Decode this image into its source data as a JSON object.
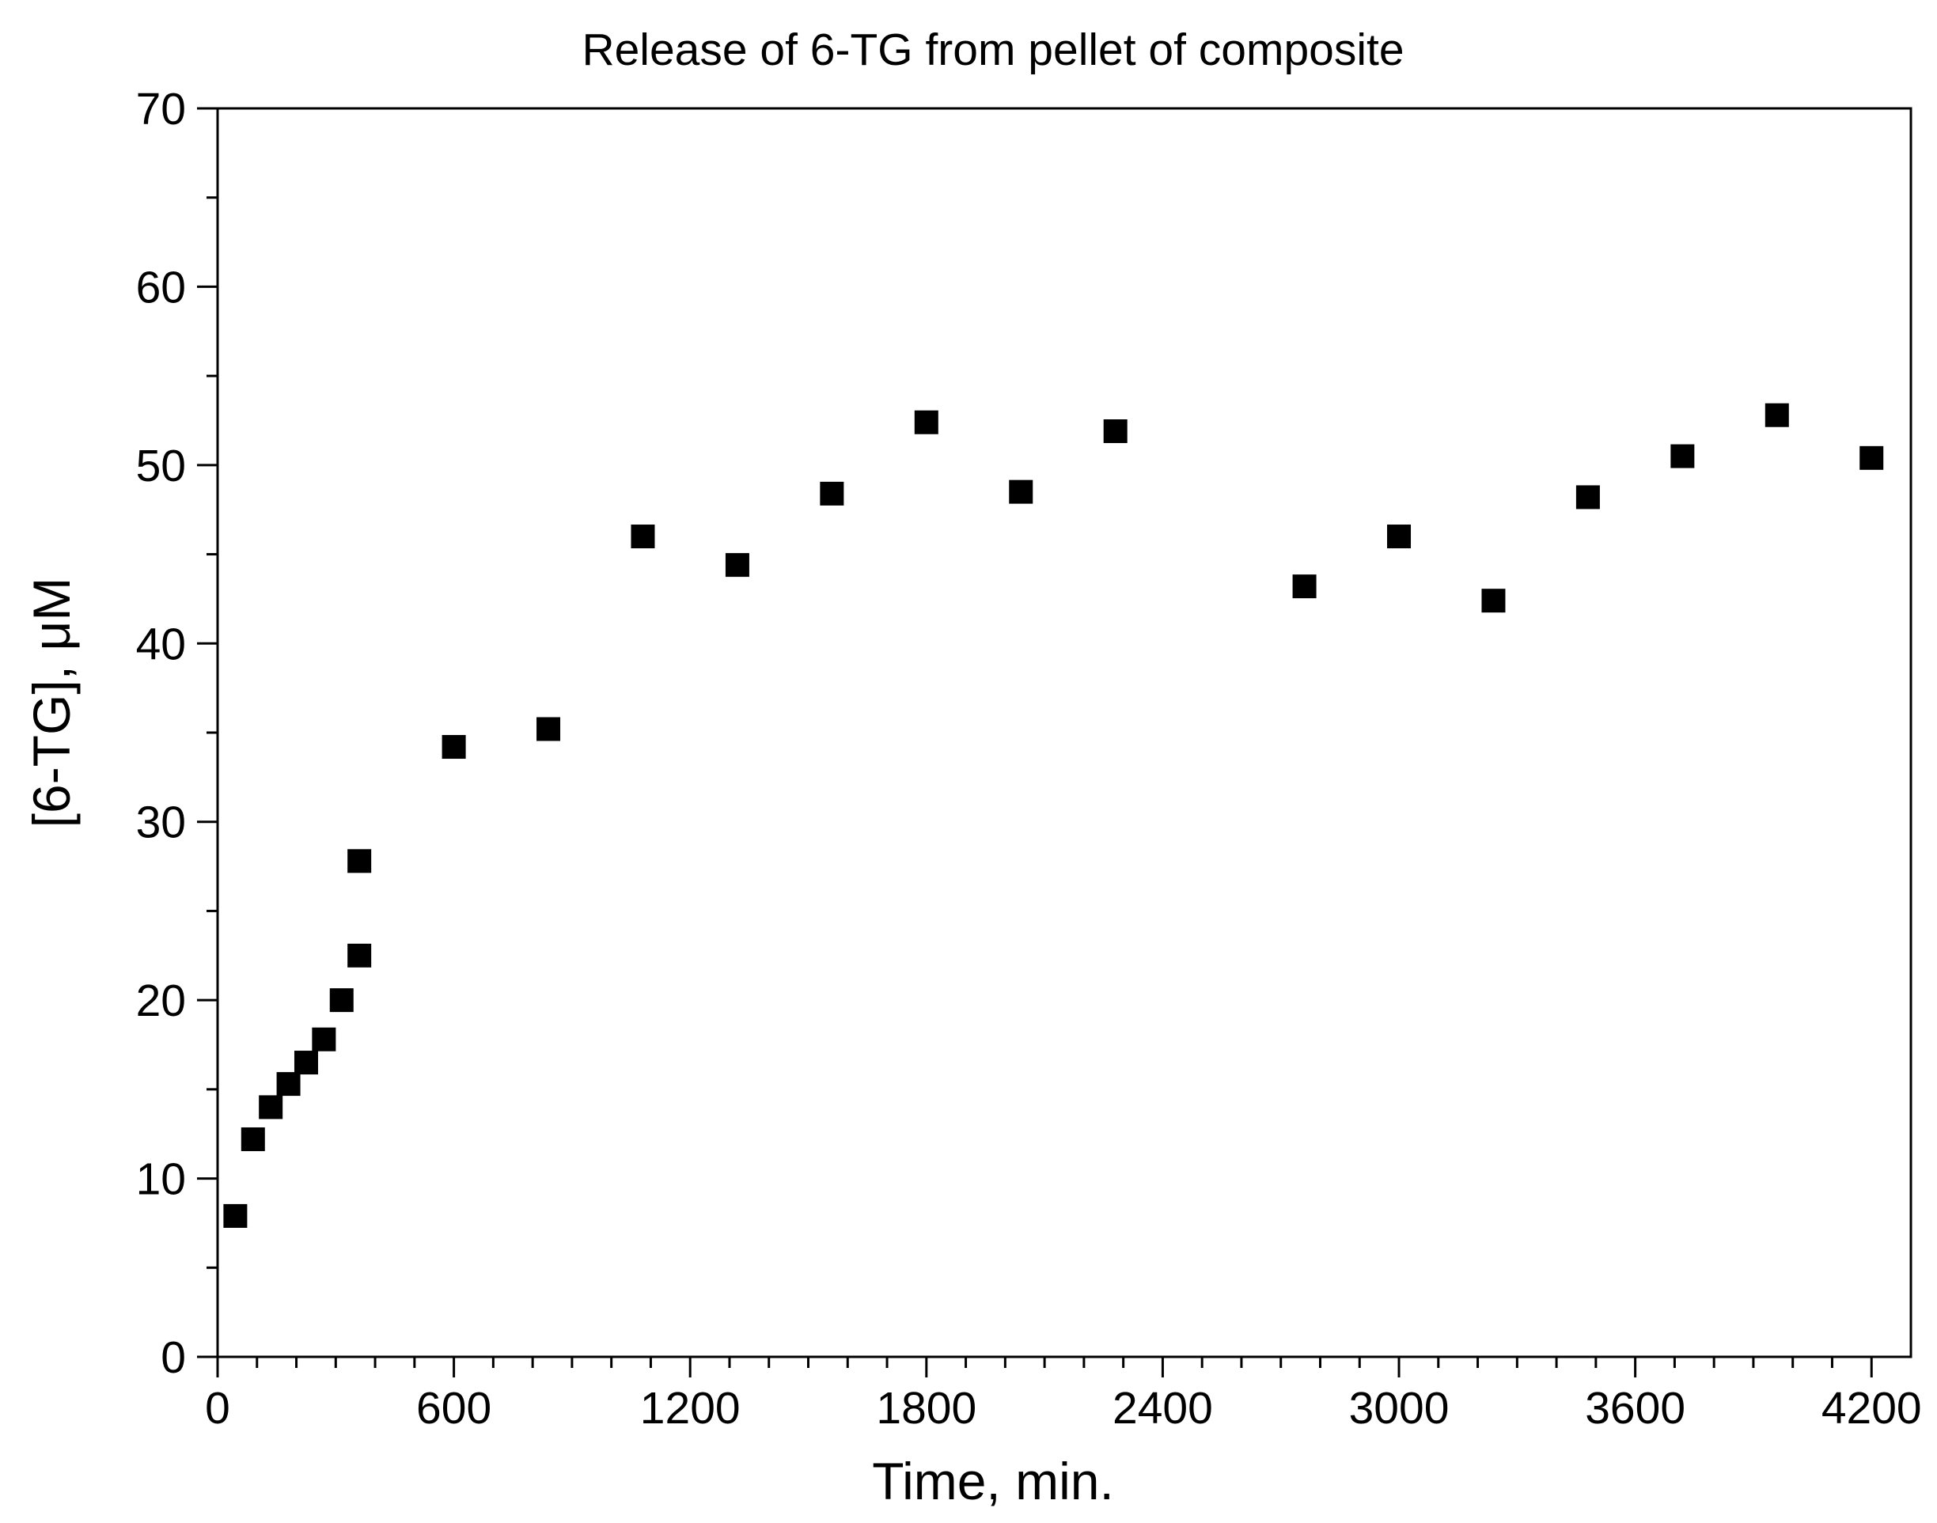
{
  "chart_data": {
    "type": "scatter",
    "title": "Release of 6-TG from pellet of composite",
    "xlabel": "Time, min.",
    "ylabel": "[6-TG], μM",
    "xlim": [
      0,
      4300
    ],
    "ylim": [
      0,
      70
    ],
    "x_ticks": [
      0,
      600,
      1200,
      1800,
      2400,
      3000,
      3600,
      4200
    ],
    "x_tick_labels": [
      "0",
      "600",
      "1200",
      "1800",
      "2400",
      "3000",
      "3600",
      "4200"
    ],
    "y_ticks": [
      0,
      10,
      20,
      30,
      40,
      50,
      60,
      70
    ],
    "y_tick_labels": [
      "0",
      "10",
      "20",
      "30",
      "40",
      "50",
      "60",
      "70"
    ],
    "grid": false,
    "legend": "none",
    "marker": "square",
    "marker_color": "#000000",
    "series": [
      {
        "points": [
          [
            45,
            7.9
          ],
          [
            90,
            12.2
          ],
          [
            135,
            14.0
          ],
          [
            180,
            15.3
          ],
          [
            225,
            16.5
          ],
          [
            270,
            17.8
          ],
          [
            315,
            20.0
          ],
          [
            360,
            22.5
          ],
          [
            360,
            27.8
          ],
          [
            600,
            34.2
          ],
          [
            840,
            35.2
          ],
          [
            1080,
            46.0
          ],
          [
            1320,
            44.4
          ],
          [
            1560,
            48.4
          ],
          [
            1800,
            52.4
          ],
          [
            2040,
            48.5
          ],
          [
            2280,
            51.9
          ],
          [
            2760,
            43.2
          ],
          [
            3000,
            46.0
          ],
          [
            3240,
            42.4
          ],
          [
            3480,
            48.2
          ],
          [
            3720,
            50.5
          ],
          [
            3960,
            52.8
          ],
          [
            4200,
            50.4
          ]
        ]
      }
    ]
  }
}
